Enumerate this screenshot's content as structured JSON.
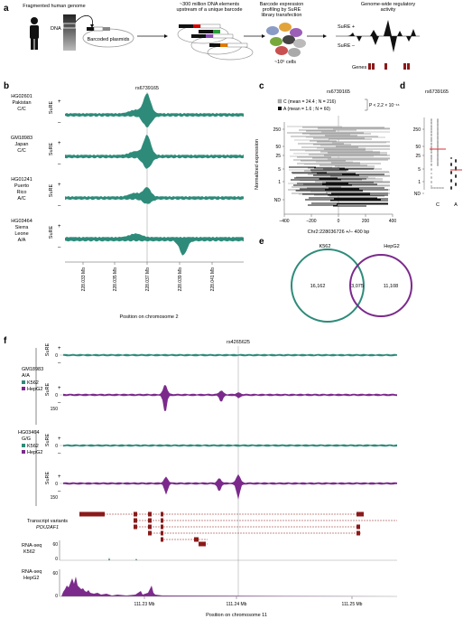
{
  "colors": {
    "teal": "#2e8b7a",
    "purple": "#7b2a8c",
    "darkred": "#8b1a1a",
    "grey": "#9a9a9a",
    "light_grey": "#cfcfcf",
    "black": "#111111",
    "red": "#d43030"
  },
  "panel_a": {
    "letter": "a",
    "genome_label": "Fragmented human genome",
    "dna_label": "DNA",
    "plasmid_label": "Barcoded plasmids",
    "elements_label": "~300 million DNA elements upstream of a unique barcode",
    "profiling_label": "Barcode expression profiling by SuRE library transfection",
    "cells_label": "~10⁶ cells",
    "activity_label": "Genome-wide regulatory activity",
    "sure_plus": "SuRE +",
    "sure_minus": "SuRE –",
    "genes_label": "Genes"
  },
  "panel_b": {
    "letter": "b",
    "snp": "rs6739165",
    "ylabel": "SuRE",
    "plus": "+",
    "minus": "–",
    "tracks": [
      {
        "line1": "HG02601",
        "line2": "Pakistan",
        "line3": "C/C",
        "line4": ""
      },
      {
        "line1": "GM18983",
        "line2": "Japan",
        "line3": "C/C",
        "line4": ""
      },
      {
        "line1": "HG01241",
        "line2": "Puerto",
        "line3": "Rico",
        "line4": "A/C"
      },
      {
        "line1": "HG03464",
        "line2": "Sierra",
        "line3": "Leone",
        "line4": "A/A"
      }
    ],
    "xticks": [
      "228.033 Mb",
      "228.035 Mb",
      "228.037 Mb",
      "228.039 Mb",
      "228.041 Mb"
    ],
    "xlabel": "Position on chromosome 2"
  },
  "panel_c": {
    "letter": "c",
    "title": "rs6739165",
    "legend_c": "C (mean = 24.4 ; N = 216)",
    "legend_a": "A (mean = 1.6 ; N = 60)",
    "pvalue": "P < 2.2 × 10⁻¹⁶",
    "ylabel": "Normalized expression",
    "yticks": [
      "250",
      "50",
      "25",
      "5",
      "1",
      "ND"
    ],
    "xticks": [
      "–400",
      "–200",
      "0",
      "200",
      "400"
    ],
    "xlabel": "Chr2:228036726 +/– 400 bp"
  },
  "panel_d": {
    "letter": "d",
    "title": "rs6739165",
    "yticks": [
      "250",
      "50",
      "25",
      "5",
      "1",
      "ND"
    ],
    "xticks": [
      "C",
      "A"
    ]
  },
  "panel_e": {
    "letter": "e",
    "left_label": "K562",
    "right_label": "HepG2",
    "left_only": "16,162",
    "overlap": "3,075",
    "right_only": "11,108"
  },
  "panel_f": {
    "letter": "f",
    "snp": "rs4265625",
    "sample1_name": "GM18983",
    "sample1_geno": "A/A",
    "sample2_name": "HG03464",
    "sample2_geno": "G/G",
    "legend_k562": "K562",
    "legend_hepg2": "HepG2",
    "ylabel": "SuRE",
    "plus": "+",
    "minus": "–",
    "ytick0": "0",
    "transcript_label1": "Transcript variants",
    "transcript_label2": "POU2AF1",
    "rna1_label1": "RNA-seq",
    "rna1_label2": "K562",
    "rna2_label1": "RNA-seq",
    "rna2_label2": "HepG2",
    "rna1_ytick": "60",
    "rna2_ytick": "60",
    "rna_y0": "0",
    "sure_ytick1": "0",
    "sure_ytick2": "150",
    "xticks": [
      "111.23 Mb",
      "111.24 Mb",
      "111.25 Mb"
    ],
    "xlabel": "Position on chromosome 11"
  }
}
